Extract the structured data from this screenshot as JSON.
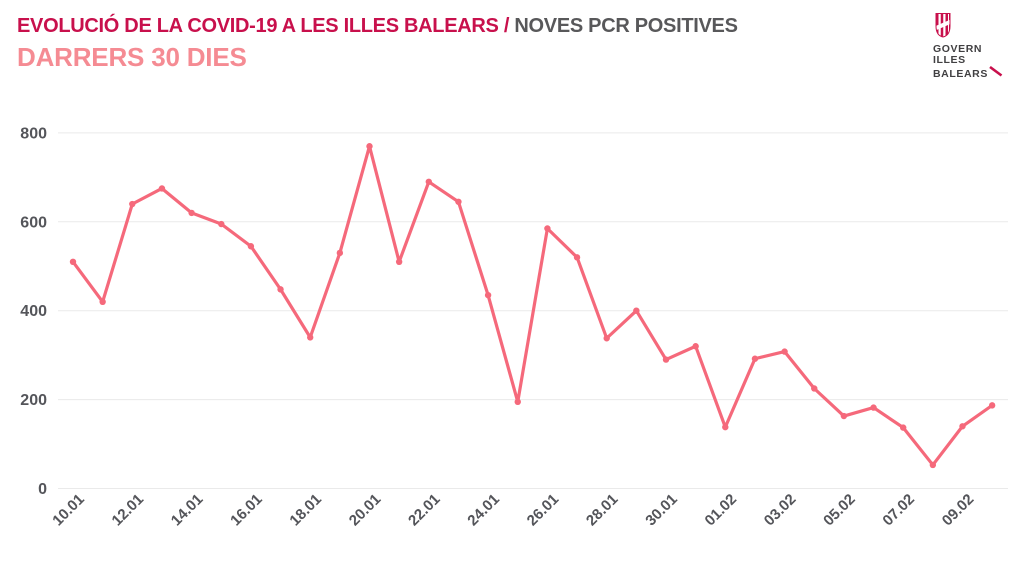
{
  "header": {
    "title_primary": "EVOLUCIÓ DE LA COVID-19 A LES ILLES BALEARS / ",
    "title_secondary": "NOVES PCR POSITIVES",
    "subtitle": "DARRERS 30 DIES"
  },
  "logo": {
    "line1": "GOVERN",
    "line2": "ILLES",
    "line3": "BALEARS",
    "shield_icon": "balearic-shield-icon",
    "accent_icon": "diagonal-slash-icon"
  },
  "colors": {
    "title_primary": "#c8104c",
    "title_secondary": "#58585a",
    "subtitle": "#f58b93",
    "line": "#f5697b",
    "grid": "#eaeaea",
    "axis_text": "#54555a",
    "logo_text": "#414042",
    "logo_accent": "#c8104c"
  },
  "chart_data": {
    "type": "line",
    "series_name": "Noves PCR positives",
    "x": [
      "10.01",
      "11.01",
      "12.01",
      "13.01",
      "14.01",
      "15.01",
      "16.01",
      "17.01",
      "18.01",
      "19.01",
      "20.01",
      "21.01",
      "22.01",
      "23.01",
      "24.01",
      "25.01",
      "26.01",
      "27.01",
      "28.01",
      "29.01",
      "30.01",
      "31.01",
      "01.02",
      "02.02",
      "03.02",
      "04.02",
      "05.02",
      "06.02",
      "07.02",
      "08.02",
      "09.02",
      "10.02"
    ],
    "values": [
      510,
      420,
      640,
      675,
      620,
      595,
      545,
      448,
      340,
      530,
      770,
      510,
      690,
      645,
      435,
      195,
      585,
      520,
      338,
      400,
      290,
      320,
      138,
      292,
      308,
      225,
      163,
      182,
      137,
      53,
      140,
      187
    ],
    "x_label_every": 2,
    "y_ticks": [
      0,
      200,
      400,
      600,
      800
    ],
    "ylim": [
      0,
      800
    ],
    "grid": "horizontal-only",
    "legend": "none",
    "markers": true
  }
}
